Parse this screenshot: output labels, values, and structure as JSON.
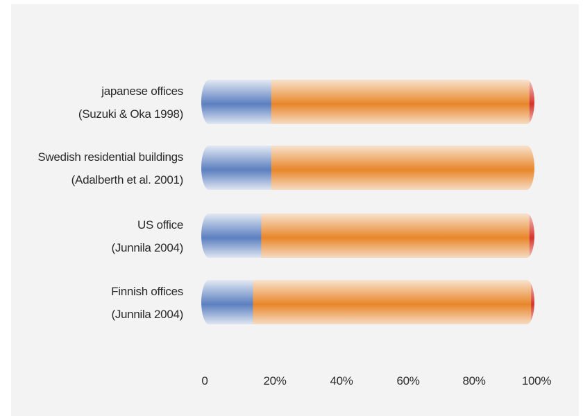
{
  "chart_data": {
    "type": "bar",
    "stacked": true,
    "orientation": "horizontal",
    "categories": [
      [
        "japanese offices",
        "(Suzuki & Oka 1998)"
      ],
      [
        "Swedish residential buildings",
        "(Adalberth et al. 2001)"
      ],
      [
        "US office",
        "(Junnila 2004)"
      ],
      [
        "Finnish offices",
        "(Junnila 2004)"
      ]
    ],
    "series": [
      {
        "color": "#5b7fbf",
        "values": [
          21,
          21,
          18,
          15.5
        ]
      },
      {
        "color": "#e8862a",
        "values": [
          77.5,
          79,
          80.5,
          83.5
        ]
      },
      {
        "color": "#d6332b",
        "values": [
          1.5,
          0,
          1.5,
          1
        ]
      }
    ],
    "xlim": [
      0,
      100
    ],
    "xticks": [
      "0",
      "20%",
      "40%",
      "60%",
      "80%",
      "100%"
    ]
  }
}
